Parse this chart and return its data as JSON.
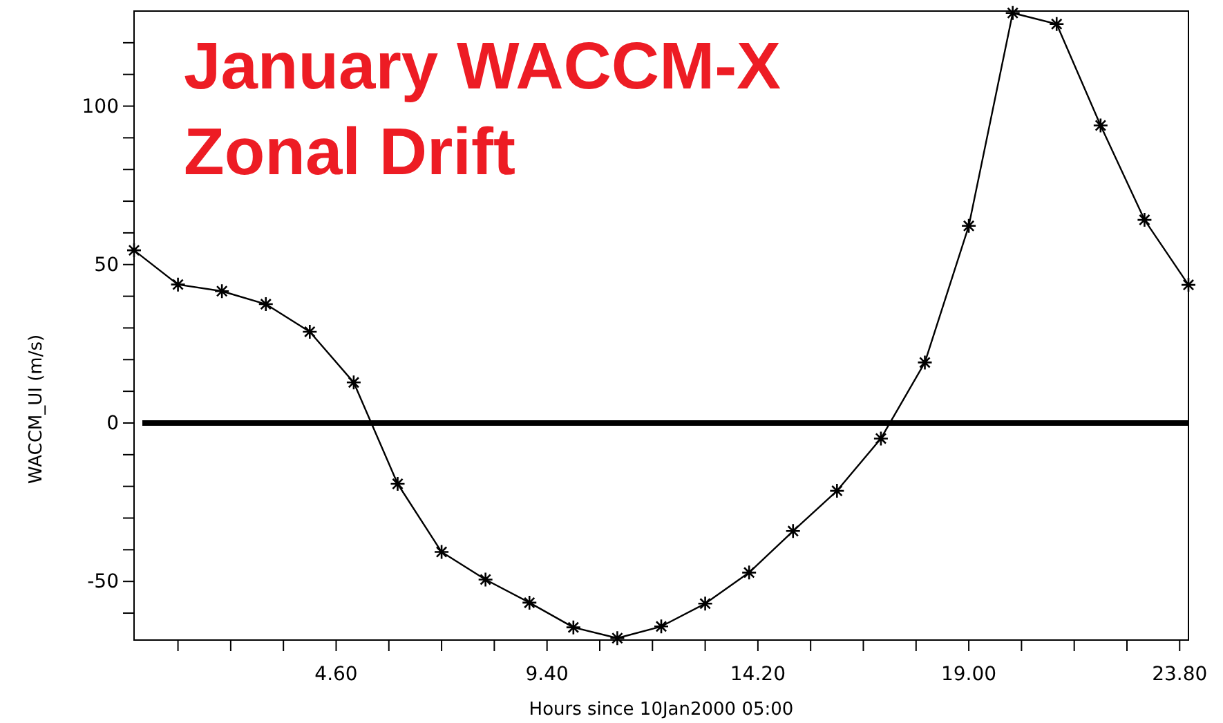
{
  "chart_data": {
    "type": "line",
    "title": "January WACCM-X\nZonal Drift",
    "xlabel": "Hours since 10Jan2000 05:00",
    "ylabel": "WACCM_UI (m/s)",
    "x": [
      0,
      1,
      2,
      3,
      4,
      5,
      6,
      7,
      8,
      9,
      10,
      11,
      12,
      13,
      14,
      15,
      16,
      17,
      18,
      19,
      20,
      21,
      22,
      23,
      24
    ],
    "series": [
      {
        "color": "#000000",
        "values": [
          54.5,
          43.7,
          41.6,
          37.5,
          28.8,
          12.8,
          -19.2,
          -40.7,
          -49.4,
          -56.7,
          -64.5,
          -67.9,
          -64.2,
          -57,
          -47.2,
          -34.1,
          -21.4,
          -4.9,
          19.1,
          62.2,
          129.4,
          125.9,
          93.9,
          64.1,
          43.6
        ]
      }
    ],
    "xlim": [
      0,
      24
    ],
    "ylim": [
      -68.5,
      130
    ],
    "xticks": [
      {
        "value": 1.0,
        "label": null
      },
      {
        "value": 2.2,
        "label": null
      },
      {
        "value": 3.4,
        "label": null
      },
      {
        "value": 4.6,
        "label": "4.60"
      },
      {
        "value": 5.8,
        "label": null
      },
      {
        "value": 7.0,
        "label": null
      },
      {
        "value": 8.2,
        "label": null
      },
      {
        "value": 9.4,
        "label": "9.40"
      },
      {
        "value": 10.6,
        "label": null
      },
      {
        "value": 11.8,
        "label": null
      },
      {
        "value": 13.0,
        "label": null
      },
      {
        "value": 14.2,
        "label": "14.20"
      },
      {
        "value": 15.4,
        "label": null
      },
      {
        "value": 16.6,
        "label": null
      },
      {
        "value": 17.8,
        "label": null
      },
      {
        "value": 19.0,
        "label": "19.00"
      },
      {
        "value": 20.2,
        "label": null
      },
      {
        "value": 21.4,
        "label": null
      },
      {
        "value": 22.6,
        "label": null
      },
      {
        "value": 23.8,
        "label": "23.80"
      }
    ],
    "yticks": [
      {
        "value": -60,
        "label": null
      },
      -50,
      {
        "value": -40,
        "label": null
      },
      {
        "value": -30,
        "label": null
      },
      {
        "value": -20,
        "label": null
      },
      {
        "value": -10,
        "label": null
      },
      0,
      {
        "value": 10,
        "label": null
      },
      {
        "value": 20,
        "label": null
      },
      {
        "value": 30,
        "label": null
      },
      {
        "value": 40,
        "label": null
      },
      50,
      {
        "value": 60,
        "label": null
      },
      {
        "value": 70,
        "label": null
      },
      {
        "value": 80,
        "label": null
      },
      {
        "value": 90,
        "label": null
      },
      100,
      {
        "value": 110,
        "label": null
      },
      {
        "value": 120,
        "label": null
      }
    ],
    "ref_lines": [
      {
        "axis": "y",
        "value": 0,
        "color": "#000000"
      }
    ],
    "marker": "cross"
  }
}
